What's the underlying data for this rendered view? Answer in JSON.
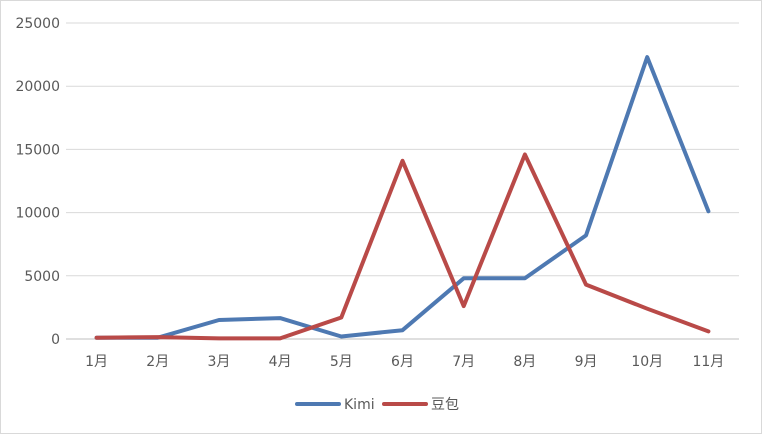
{
  "chart_data": {
    "type": "line",
    "categories": [
      "1月",
      "2月",
      "3月",
      "4月",
      "5月",
      "6月",
      "7月",
      "8月",
      "9月",
      "10月",
      "11月"
    ],
    "series": [
      {
        "name": "Kimi",
        "color": "#4e79b2",
        "values": [
          100,
          100,
          1500,
          1650,
          200,
          700,
          4800,
          4800,
          8200,
          22300,
          10100
        ]
      },
      {
        "name": "豆包",
        "color": "#b94a48",
        "values": [
          100,
          150,
          50,
          50,
          1700,
          14100,
          2600,
          14600,
          4300,
          2400,
          600
        ]
      }
    ],
    "ylim": [
      0,
      25000
    ],
    "yticks": [
      0,
      5000,
      10000,
      15000,
      20000,
      25000
    ],
    "grid": true,
    "legend": "bottom"
  }
}
